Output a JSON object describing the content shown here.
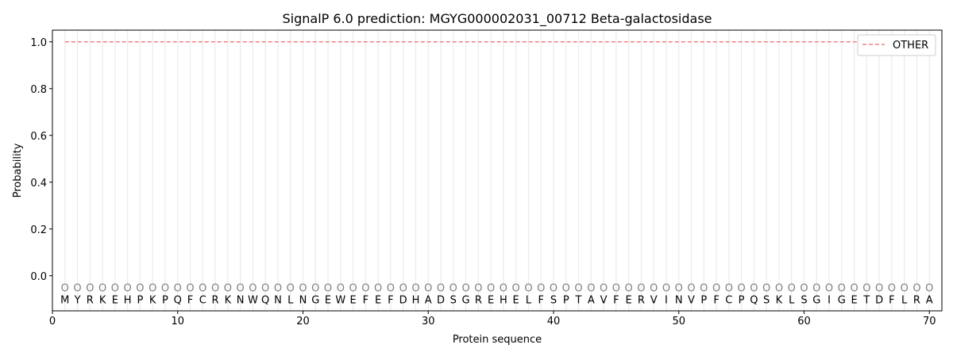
{
  "chart_data": {
    "type": "line",
    "title": "SignalP 6.0 prediction: MGYG000002031_00712 Beta-galactosidase",
    "xlabel": "Protein sequence",
    "ylabel": "Probability",
    "xlim": [
      0,
      71
    ],
    "ylim": [
      -0.15,
      1.05
    ],
    "xticks": [
      0,
      10,
      20,
      30,
      40,
      50,
      60,
      70
    ],
    "yticks": [
      0.0,
      0.2,
      0.4,
      0.6,
      0.8,
      1.0
    ],
    "ytick_labels": [
      "0.0",
      "0.2",
      "0.4",
      "0.6",
      "0.8",
      "1.0"
    ],
    "grid": "vertical lines at each residue",
    "legend_position": "top-right",
    "sequence": [
      "M",
      "Y",
      "R",
      "K",
      "E",
      "H",
      "P",
      "K",
      "P",
      "Q",
      "F",
      "C",
      "R",
      "K",
      "N",
      "W",
      "Q",
      "N",
      "L",
      "N",
      "G",
      "E",
      "W",
      "E",
      "F",
      "E",
      "F",
      "D",
      "H",
      "A",
      "D",
      "S",
      "G",
      "R",
      "E",
      "H",
      "E",
      "L",
      "F",
      "S",
      "P",
      "T",
      "A",
      "V",
      "F",
      "E",
      "R",
      "V",
      "I",
      "N",
      "V",
      "P",
      "F",
      "C",
      "P",
      "Q",
      "S",
      "K",
      "L",
      "S",
      "G",
      "I",
      "G",
      "E",
      "T",
      "D",
      "F",
      "L",
      "R",
      "A"
    ],
    "predicted_labels": "OOOOOOOOOOOOOOOOOOOOOOOOOOOOOOOOOOOOOOOOOOOOOOOOOOOOOOOOOOOOOOOOOOOOOO",
    "series": [
      {
        "name": "OTHER",
        "color": "#f08080",
        "style": "dashed",
        "x_range": [
          1,
          70
        ],
        "value": 1.0
      }
    ]
  }
}
